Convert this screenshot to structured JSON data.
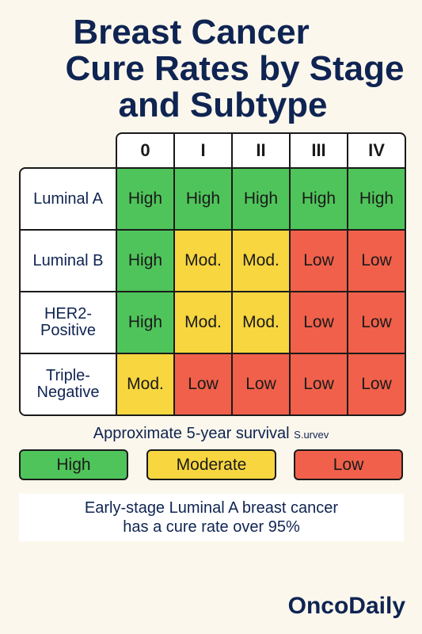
{
  "title": {
    "line1": "Breast Cancer",
    "line2": "Cure Rates by Stage",
    "line3": "and Subtype"
  },
  "chart_data": {
    "type": "heatmap",
    "title": "Breast Cancer Cure Rates by Stage and Subtype",
    "columns": [
      "0",
      "I",
      "II",
      "III",
      "IV"
    ],
    "rows": [
      {
        "label": "Luminal A",
        "values": [
          "High",
          "High",
          "High",
          "High",
          "High"
        ]
      },
      {
        "label": "Luminal B",
        "values": [
          "High",
          "Mod.",
          "Mod.",
          "Low",
          "Low"
        ]
      },
      {
        "label": "HER2-Positive",
        "values": [
          "High",
          "Mod.",
          "Mod.",
          "Low",
          "Low"
        ]
      },
      {
        "label": "Triple-Negative",
        "values": [
          "Mod.",
          "Low",
          "Low",
          "Low",
          "Low"
        ]
      }
    ],
    "colors": {
      "High": "#4fc45a",
      "Mod.": "#f7d640",
      "Low": "#f0604a"
    }
  },
  "caption": {
    "main": "Approximate 5-year survival",
    "small": "S.urvev"
  },
  "legend": [
    {
      "label": "High",
      "color": "#4fc45a"
    },
    {
      "label": "Moderate",
      "color": "#f7d640"
    },
    {
      "label": "Low",
      "color": "#f0604a"
    }
  ],
  "note": {
    "line1": "Early-stage Luminal A breast cancer",
    "line2": "has a cure rate over 95%"
  },
  "brand": "OncoDaily"
}
